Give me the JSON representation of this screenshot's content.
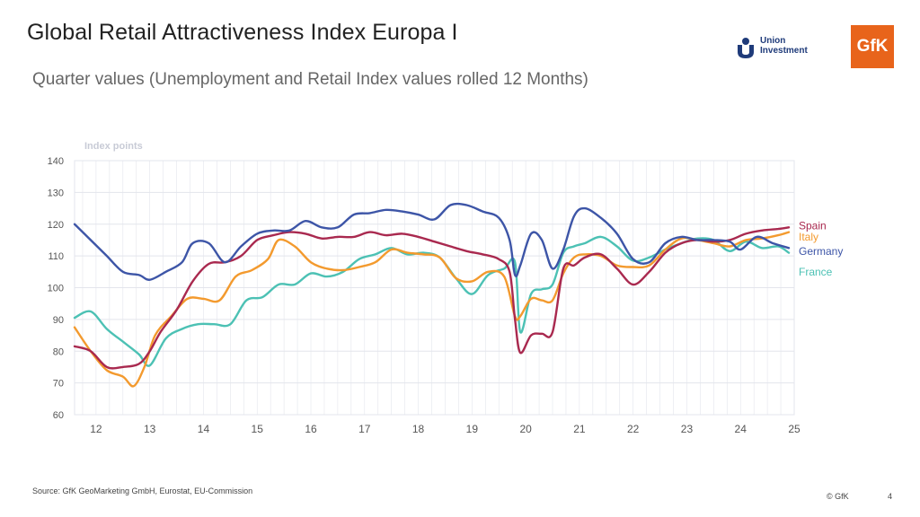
{
  "header": {
    "title": "Global Retail Attractiveness Index Europa I",
    "subtitle": "Quarter values (Unemployment and Retail Index values rolled 12 Months)"
  },
  "logos": {
    "union_line1": "Union",
    "union_line2": "Investment",
    "gfk": "GfK"
  },
  "footer": {
    "source": "Source: GfK GeoMarketing GmbH, Eurostat, EU-Commission",
    "copyright": "© GfK",
    "page": "4"
  },
  "colors": {
    "spain": "#a9294f",
    "italy": "#f39a2e",
    "germany": "#3d55a7",
    "france": "#4cc1b4",
    "grid": "#e3e5ec",
    "gfk": "#e8641b"
  },
  "chart_data": {
    "type": "line",
    "title": "",
    "ylabel": "Index points",
    "xlabel": "",
    "ylim": [
      60,
      140
    ],
    "yticks": [
      60,
      70,
      80,
      90,
      100,
      110,
      120,
      130,
      140
    ],
    "xlim": [
      11.6,
      25.0
    ],
    "xtick_labels": [
      "12",
      "13",
      "14",
      "15",
      "16",
      "17",
      "18",
      "19",
      "20",
      "21",
      "22",
      "23",
      "24",
      "25"
    ],
    "xticks": [
      12,
      13,
      14,
      15,
      16,
      17,
      18,
      19,
      20,
      21,
      22,
      23,
      24,
      25
    ],
    "legend": [
      "Spain",
      "Italy",
      "Germany",
      "France"
    ],
    "series": [
      {
        "name": "Germany",
        "key": "germany",
        "x": [
          11.6,
          11.9,
          12.2,
          12.5,
          12.8,
          13.0,
          13.3,
          13.6,
          13.8,
          14.1,
          14.4,
          14.7,
          15.0,
          15.3,
          15.6,
          15.9,
          16.2,
          16.5,
          16.8,
          17.1,
          17.4,
          17.7,
          18.0,
          18.3,
          18.6,
          18.9,
          19.2,
          19.5,
          19.7,
          19.8,
          19.9,
          20.1,
          20.3,
          20.5,
          20.7,
          20.9,
          21.1,
          21.4,
          21.7,
          22.0,
          22.3,
          22.6,
          22.9,
          23.2,
          23.5,
          23.8,
          24.0,
          24.3,
          24.6,
          24.9
        ],
        "values": [
          120,
          115,
          110,
          105,
          104,
          102.5,
          105,
          108,
          114,
          114,
          108,
          113,
          117,
          118,
          118,
          121,
          119,
          119,
          123,
          123.5,
          124.5,
          124,
          123,
          121.5,
          126,
          126,
          124,
          122,
          115,
          104,
          107,
          117,
          115,
          106,
          112,
          122.5,
          125,
          122,
          117,
          109,
          108,
          114,
          116,
          115,
          115,
          114.5,
          112,
          116,
          114,
          112.5
        ]
      },
      {
        "name": "Spain",
        "key": "spain",
        "x": [
          11.6,
          11.9,
          12.2,
          12.5,
          12.8,
          13.0,
          13.2,
          13.5,
          13.8,
          14.1,
          14.4,
          14.7,
          15.0,
          15.3,
          15.6,
          15.9,
          16.2,
          16.5,
          16.8,
          17.1,
          17.4,
          17.7,
          18.0,
          18.3,
          18.6,
          18.9,
          19.2,
          19.5,
          19.7,
          19.8,
          19.9,
          20.1,
          20.3,
          20.5,
          20.7,
          20.9,
          21.1,
          21.4,
          21.7,
          22.0,
          22.3,
          22.6,
          22.9,
          23.2,
          23.5,
          23.8,
          24.1,
          24.4,
          24.7,
          24.9
        ],
        "values": [
          81.5,
          80,
          75,
          75,
          76,
          80,
          86,
          93,
          102,
          107.5,
          108,
          110,
          115,
          116.5,
          117.5,
          117,
          115.5,
          116,
          116,
          117.5,
          116.5,
          117,
          116,
          114.5,
          113,
          111.5,
          110.5,
          109,
          105,
          90,
          79.5,
          85,
          85.5,
          86,
          106,
          107,
          109.5,
          110.5,
          106,
          101,
          105,
          111,
          114,
          115,
          114.5,
          115,
          117,
          118,
          118.5,
          119
        ]
      },
      {
        "name": "Italy",
        "key": "italy",
        "x": [
          11.6,
          11.9,
          12.2,
          12.5,
          12.7,
          12.9,
          13.1,
          13.4,
          13.7,
          14.0,
          14.3,
          14.6,
          14.9,
          15.2,
          15.4,
          15.7,
          16.0,
          16.3,
          16.6,
          16.9,
          17.2,
          17.5,
          17.8,
          18.1,
          18.4,
          18.7,
          19.0,
          19.3,
          19.6,
          19.8,
          19.9,
          20.1,
          20.3,
          20.5,
          20.7,
          20.9,
          21.1,
          21.4,
          21.7,
          22.0,
          22.3,
          22.6,
          22.9,
          23.2,
          23.5,
          23.8,
          24.1,
          24.4,
          24.7,
          24.9
        ],
        "values": [
          87.5,
          80,
          74,
          72,
          69,
          75,
          85,
          91,
          96.5,
          96.5,
          96,
          103.5,
          105.5,
          109,
          115,
          113,
          108,
          106,
          105.5,
          106.5,
          108,
          112,
          111,
          110.5,
          109.5,
          103,
          102,
          105,
          103.5,
          91,
          91,
          96.5,
          96,
          96,
          104.5,
          109.5,
          110.5,
          110,
          107,
          106.5,
          107,
          112,
          115.5,
          115,
          114,
          113,
          115,
          115.5,
          116.5,
          117.5
        ]
      },
      {
        "name": "France",
        "key": "france",
        "x": [
          11.6,
          11.9,
          12.2,
          12.5,
          12.8,
          13.0,
          13.3,
          13.6,
          13.9,
          14.2,
          14.5,
          14.8,
          15.1,
          15.4,
          15.7,
          16.0,
          16.3,
          16.6,
          16.9,
          17.2,
          17.5,
          17.8,
          18.1,
          18.4,
          18.7,
          19.0,
          19.3,
          19.6,
          19.8,
          19.9,
          20.1,
          20.3,
          20.5,
          20.7,
          20.9,
          21.1,
          21.4,
          21.7,
          22.0,
          22.3,
          22.6,
          22.9,
          23.2,
          23.5,
          23.8,
          24.1,
          24.4,
          24.7,
          24.9
        ],
        "values": [
          90.5,
          92.5,
          87,
          83,
          79,
          75.5,
          84,
          87,
          88.5,
          88.5,
          88.5,
          96,
          97,
          101,
          101,
          104.5,
          103.5,
          105,
          109,
          110.5,
          112.5,
          110.5,
          111,
          109.5,
          103,
          98,
          104,
          106,
          108,
          86,
          98,
          99.5,
          101,
          111,
          113,
          114,
          116,
          113,
          108.5,
          109.5,
          112,
          114,
          115.5,
          115,
          111.5,
          114.5,
          112.5,
          113,
          111
        ]
      }
    ],
    "legend_labels": [
      {
        "key": "spain",
        "text": "Spain",
        "y": 119.5
      },
      {
        "key": "italy",
        "text": "Italy",
        "y": 116
      },
      {
        "key": "germany",
        "text": "Germany",
        "y": 111.5
      },
      {
        "key": "france",
        "text": "France",
        "y": 105
      }
    ]
  }
}
